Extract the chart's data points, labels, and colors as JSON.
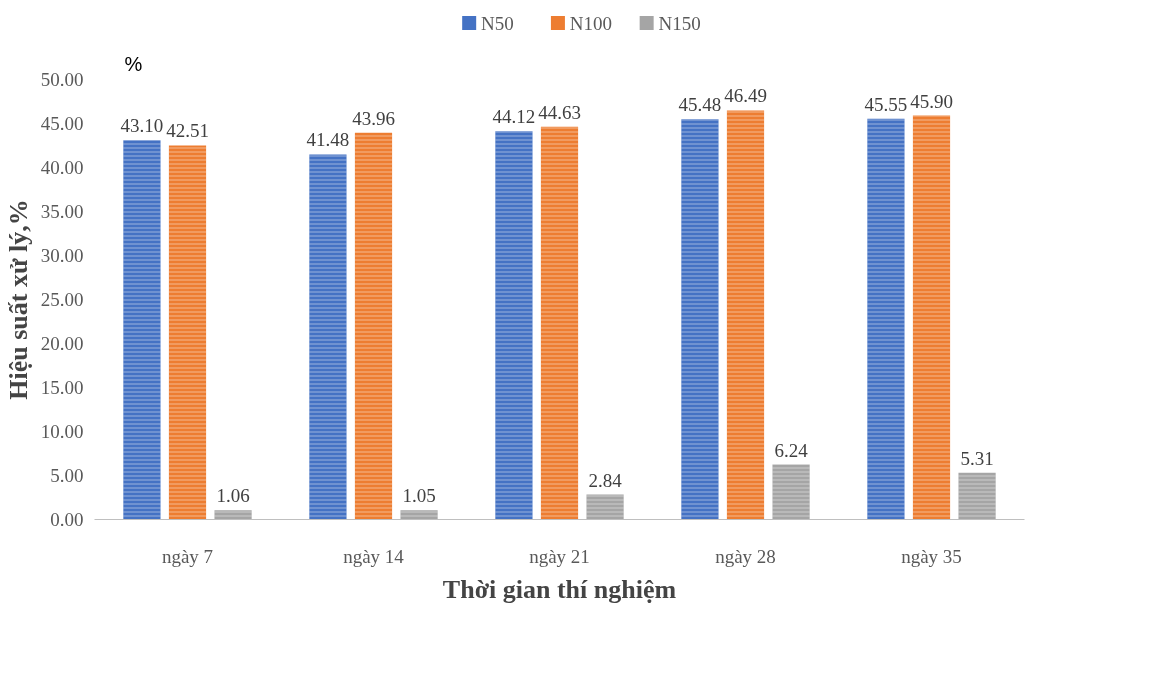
{
  "chart_data": {
    "type": "bar",
    "xlabel": "Thời gian thí nghiệm",
    "ylabel": "Hiệu suất xử lý,%",
    "annotations": [
      "%"
    ],
    "categories": [
      "ngày 7",
      "ngày 14",
      "ngày 21",
      "ngày 28",
      "ngày 35"
    ],
    "series": [
      {
        "name": "N50",
        "color": "#4472c4",
        "values": [
          43.1,
          41.48,
          44.12,
          45.48,
          45.55
        ],
        "value_labels": [
          "43.10",
          "41.48",
          "44.12",
          "45.48",
          "45.55"
        ]
      },
      {
        "name": "N100",
        "color": "#ed7d31",
        "values": [
          42.51,
          43.96,
          44.63,
          46.49,
          45.9
        ],
        "value_labels": [
          "42.51",
          "43.96",
          "44.63",
          "46.49",
          "45.90"
        ]
      },
      {
        "name": "N150",
        "color": "#a5a5a5",
        "values": [
          1.06,
          1.05,
          2.84,
          6.24,
          5.31
        ],
        "value_labels": [
          "1.06",
          "1.05",
          "2.84",
          "6.24",
          "5.31"
        ]
      }
    ],
    "ylim": [
      0,
      50
    ],
    "yticks": [
      {
        "value": 0,
        "label": "0.00"
      },
      {
        "value": 5,
        "label": "5.00"
      },
      {
        "value": 10,
        "label": "10.00"
      },
      {
        "value": 15,
        "label": "15.00"
      },
      {
        "value": 20,
        "label": "20.00"
      },
      {
        "value": 25,
        "label": "25.00"
      },
      {
        "value": 30,
        "label": "30.00"
      },
      {
        "value": 35,
        "label": "35.00"
      },
      {
        "value": 40,
        "label": "40.00"
      },
      {
        "value": 45,
        "label": "45.00"
      },
      {
        "value": 50,
        "label": "50.00"
      }
    ],
    "grid": false,
    "legend": "top"
  }
}
